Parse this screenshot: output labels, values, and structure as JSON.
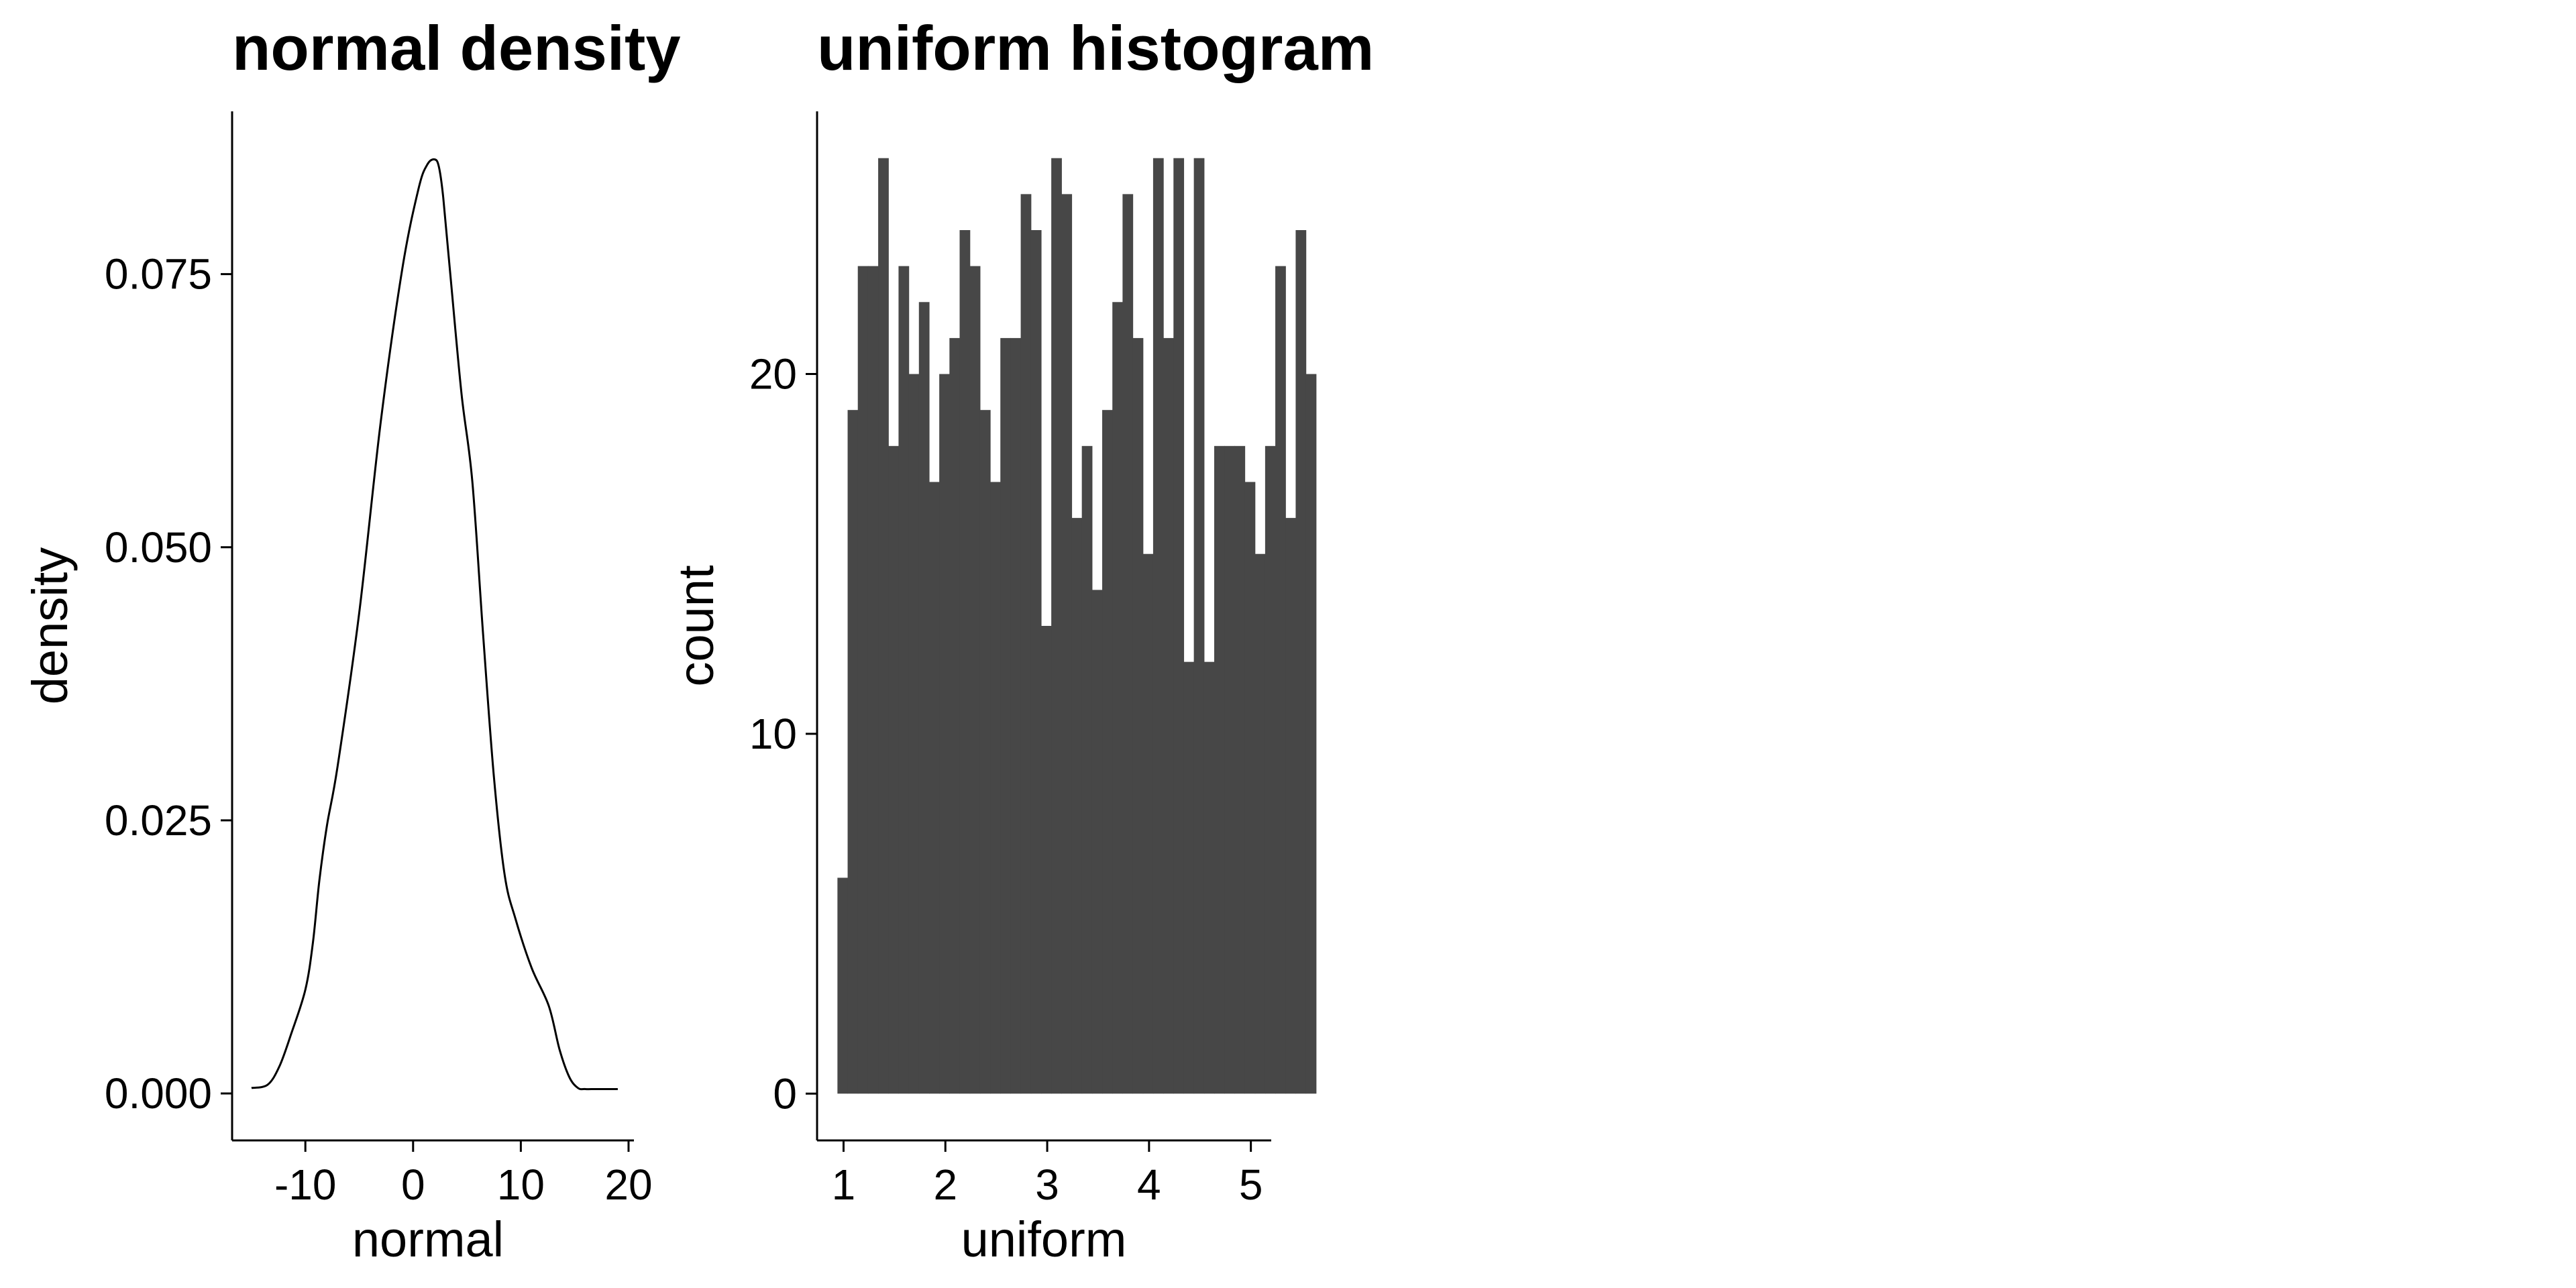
{
  "chart_data": [
    {
      "type": "area",
      "title": "normal density",
      "xlabel": "normal",
      "ylabel": "density",
      "xlim": [
        -16.8,
        20.5
      ],
      "ylim": [
        -0.0043,
        0.0899
      ],
      "x_ticks": [
        -10,
        0,
        10,
        20
      ],
      "x_tick_labels": [
        "-10",
        "0",
        "10",
        "20"
      ],
      "y_ticks": [
        0,
        0.025,
        0.05,
        0.075
      ],
      "y_tick_labels": [
        "0.000",
        "0.025",
        "0.050",
        "0.075"
      ],
      "grid": false,
      "line_color": "#000000",
      "x": [
        -15.0,
        -13.5,
        -12.4,
        -11.3,
        -10.0,
        -9.3,
        -8.7,
        -8.0,
        -7.0,
        -5.0,
        -3.0,
        -1.0,
        0.5,
        1.3,
        2.0,
        2.4,
        2.8,
        3.5,
        4.5,
        5.5,
        6.5,
        7.5,
        8.5,
        9.5,
        11.0,
        12.6,
        13.6,
        14.5,
        15.3,
        16.0,
        17.0,
        19.0
      ],
      "y": [
        0.0005,
        0.0008,
        0.0025,
        0.0055,
        0.0095,
        0.0138,
        0.0195,
        0.0245,
        0.03,
        0.044,
        0.0615,
        0.0755,
        0.0828,
        0.085,
        0.0855,
        0.0848,
        0.082,
        0.0745,
        0.064,
        0.056,
        0.042,
        0.029,
        0.02,
        0.016,
        0.0115,
        0.008,
        0.004,
        0.0015,
        0.0005,
        0.0004,
        0.0004,
        0.0004
      ]
    },
    {
      "type": "bar",
      "title": "uniform histogram",
      "xlabel": "uniform",
      "ylabel": "count",
      "xlim": [
        0.74,
        5.2
      ],
      "ylim": [
        -1.3,
        27.3
      ],
      "x_ticks": [
        1,
        2,
        3,
        4,
        5
      ],
      "x_tick_labels": [
        "1",
        "2",
        "3",
        "4",
        "5"
      ],
      "y_ticks": [
        0,
        10,
        20
      ],
      "y_tick_labels": [
        "0",
        "10",
        "20"
      ],
      "grid": false,
      "bar_color": "#474747",
      "bin_start": 0.94,
      "bin_width": 0.1,
      "values": [
        6,
        19,
        23,
        23,
        26,
        18,
        23,
        20,
        22,
        17,
        20,
        21,
        24,
        23,
        19,
        17,
        21,
        21,
        25,
        24,
        13,
        26,
        25,
        16,
        18,
        14,
        19,
        22,
        25,
        21,
        15,
        26,
        21,
        26,
        12,
        26,
        12,
        18,
        18,
        18,
        17,
        15,
        18,
        23,
        16,
        24,
        20
      ]
    }
  ]
}
